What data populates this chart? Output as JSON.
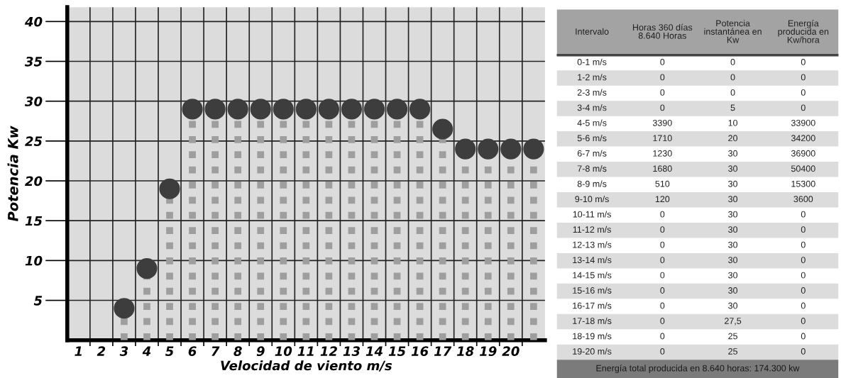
{
  "chart_data": [
    {
      "type": "lollipop",
      "xlabel": "Velocidad de viento m/s",
      "ylabel": "Potencia Kw",
      "categories": [
        "1",
        "2",
        "3",
        "4",
        "5",
        "6",
        "7",
        "8",
        "9",
        "10",
        "11",
        "12",
        "13",
        "14",
        "15",
        "16",
        "17",
        "18",
        "19",
        "20",
        null
      ],
      "series": [
        {
          "color": "#3d3d3d",
          "values": [
            null,
            null,
            4,
            9,
            19,
            29,
            29,
            29,
            29,
            29,
            29,
            29,
            29,
            29,
            29,
            29,
            26.5,
            24,
            24,
            24,
            24
          ]
        }
      ],
      "ylim": [
        0,
        41.8
      ],
      "yticks": [
        5,
        10,
        15,
        20,
        25,
        30,
        35,
        40
      ],
      "grid": true,
      "marker": "circle",
      "line_style": "dotted"
    },
    {
      "type": "other",
      "categories": [
        "Intervalo",
        "Horas 360 días\n8.640 Horas",
        "Potencia\ninstantánea en\nKw",
        "Energía\nproducida en\nKw/hora"
      ],
      "cell_labels": [
        [
          "0-1 m/s",
          "0",
          "0",
          "0"
        ],
        [
          "1-2 m/s",
          "0",
          "0",
          "0"
        ],
        [
          "2-3 m/s",
          "0",
          "0",
          "0"
        ],
        [
          "3-4 m/s",
          "0",
          "5",
          "0"
        ],
        [
          "4-5 m/s",
          "3390",
          "10",
          "33900"
        ],
        [
          "5-6 m/s",
          "1710",
          "20",
          "34200"
        ],
        [
          "6-7 m/s",
          "1230",
          "30",
          "36900"
        ],
        [
          "7-8 m/s",
          "1680",
          "30",
          "50400"
        ],
        [
          "8-9 m/s",
          "510",
          "30",
          "15300"
        ],
        [
          "9-10 m/s",
          "120",
          "30",
          "3600"
        ],
        [
          "10-11 m/s",
          "0",
          "30",
          "0"
        ],
        [
          "11-12 m/s",
          "0",
          "30",
          "0"
        ],
        [
          "12-13 m/s",
          "0",
          "30",
          "0"
        ],
        [
          "13-14 m/s",
          "0",
          "30",
          "0"
        ],
        [
          "14-15 m/s",
          "0",
          "30",
          "0"
        ],
        [
          "15-16 m/s",
          "0",
          "30",
          "0"
        ],
        [
          "16-17 m/s",
          "0",
          "30",
          "0"
        ],
        [
          "17-18 m/s",
          "0",
          "27,5",
          "0"
        ],
        [
          "18-19 m/s",
          "0",
          "25",
          "0"
        ],
        [
          "19-20 m/s",
          "0",
          "25",
          "0"
        ]
      ],
      "annotations": [
        "Energía total producida en 8.640 horas: 174.300 kw"
      ]
    }
  ]
}
